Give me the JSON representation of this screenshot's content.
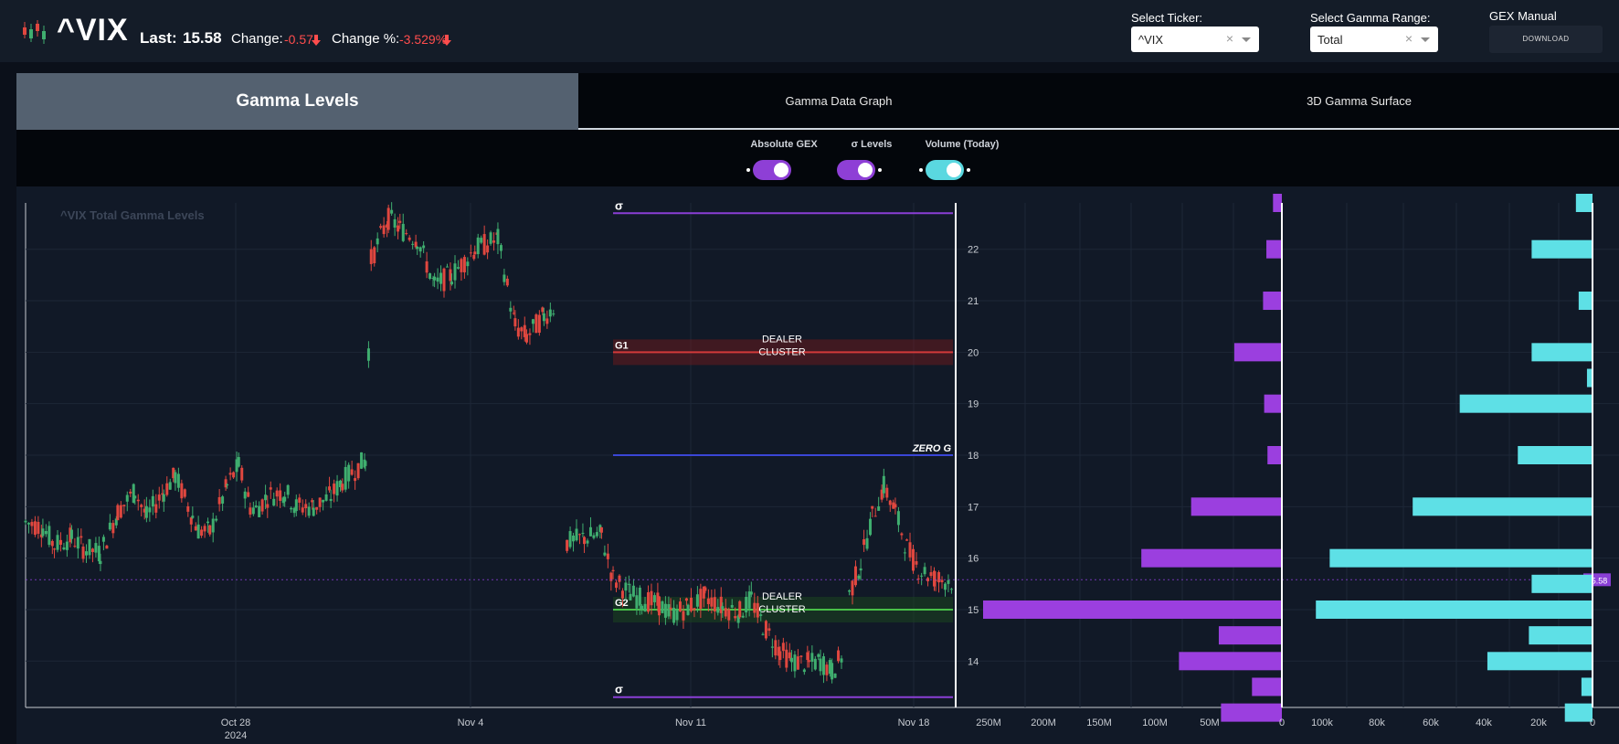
{
  "header": {
    "ticker": "^VIX",
    "last_label": "Last:",
    "last_value": "15.58",
    "change_label": "Change:",
    "change_value": "-0.57",
    "change_pct_label": "Change %:",
    "change_pct_value": "-3.529%",
    "down_color": "#ff4d4d",
    "logo_icon": "candlestick-logo-icon"
  },
  "controls": {
    "ticker_label": "Select Ticker:",
    "ticker_value": "^VIX",
    "gamma_range_label": "Select Gamma Range:",
    "gamma_range_value": "Total",
    "gex_manual_label": "GEX Manual",
    "download_label": "DOWNLOAD",
    "clear_glyph": "×"
  },
  "tabs": [
    {
      "label": "Gamma Levels",
      "active": true
    },
    {
      "label": "Gamma Data Graph",
      "active": false
    },
    {
      "label": "3D Gamma Surface",
      "active": false
    }
  ],
  "toggles": [
    {
      "label": "Absolute GEX",
      "on": true,
      "color": "#8e3fd6"
    },
    {
      "label": "σ Levels",
      "on": true,
      "color": "#8e3fd6"
    },
    {
      "label": "Volume (Today)",
      "on": true,
      "color": "#5ad8e0"
    }
  ],
  "chart_data": {
    "type": "candlestick",
    "title": "^VIX Total Gamma Levels",
    "x_ticks": [
      {
        "label": "Oct 28",
        "sublabel": "2024"
      },
      {
        "label": "Nov 4",
        "sublabel": ""
      },
      {
        "label": "Nov 11",
        "sublabel": ""
      },
      {
        "label": "Nov 18",
        "sublabel": ""
      }
    ],
    "y_ticks": [
      14,
      15,
      16,
      17,
      18,
      19,
      20,
      21,
      22
    ],
    "ylim": [
      13.1,
      22.9
    ],
    "last_price": 15.58,
    "last_price_label": "15.58",
    "price_path": [
      {
        "t": 0,
        "p": 16.7
      },
      {
        "t": 3,
        "p": 16.6
      },
      {
        "t": 5,
        "p": 16.25
      },
      {
        "t": 8,
        "p": 16.4
      },
      {
        "t": 10,
        "p": 16.2
      },
      {
        "t": 13,
        "p": 16.1
      },
      {
        "t": 16,
        "p": 16.9
      },
      {
        "t": 19,
        "p": 17.3
      },
      {
        "t": 21,
        "p": 16.8
      },
      {
        "t": 24,
        "p": 17.3
      },
      {
        "t": 26,
        "p": 17.6
      },
      {
        "t": 29,
        "p": 16.8
      },
      {
        "t": 30,
        "p": 16.55
      },
      {
        "t": 32,
        "p": 16.5
      },
      {
        "t": 35,
        "p": 17.4
      },
      {
        "t": 37,
        "p": 17.8
      },
      {
        "t": 39,
        "p": 17.0
      },
      {
        "t": 40,
        "p": 16.95
      },
      {
        "t": 42,
        "p": 17.2
      },
      {
        "t": 45,
        "p": 17.3
      },
      {
        "t": 47,
        "p": 17.0
      },
      {
        "t": 50,
        "p": 17.0
      },
      {
        "t": 53,
        "p": 17.2
      },
      {
        "t": 55,
        "p": 17.5
      },
      {
        "t": 59,
        "p": 17.9
      },
      {
        "t": 60,
        "p": 21.8
      },
      {
        "t": 63,
        "p": 22.6
      },
      {
        "t": 65,
        "p": 22.4
      },
      {
        "t": 68,
        "p": 22.2
      },
      {
        "t": 71,
        "p": 21.3
      },
      {
        "t": 74,
        "p": 21.5
      },
      {
        "t": 78,
        "p": 22.0
      },
      {
        "t": 82,
        "p": 22.2
      },
      {
        "t": 85,
        "p": 20.5
      },
      {
        "t": 87,
        "p": 20.3
      },
      {
        "t": 90,
        "p": 20.7
      },
      {
        "t": 92,
        "p": 20.9
      },
      {
        "t": 94,
        "p": 16.3
      },
      {
        "t": 97,
        "p": 16.4
      },
      {
        "t": 100,
        "p": 16.45
      },
      {
        "t": 102,
        "p": 15.6
      },
      {
        "t": 105,
        "p": 15.3
      },
      {
        "t": 107,
        "p": 15.2
      },
      {
        "t": 110,
        "p": 15.1
      },
      {
        "t": 112,
        "p": 14.9
      },
      {
        "t": 115,
        "p": 15.05
      },
      {
        "t": 118,
        "p": 15.25
      },
      {
        "t": 121,
        "p": 15.05
      },
      {
        "t": 124,
        "p": 14.95
      },
      {
        "t": 126,
        "p": 15.2
      },
      {
        "t": 128,
        "p": 14.7
      },
      {
        "t": 131,
        "p": 14.2
      },
      {
        "t": 133,
        "p": 14.0
      },
      {
        "t": 136,
        "p": 13.95
      },
      {
        "t": 138,
        "p": 14.0
      },
      {
        "t": 140,
        "p": 13.8
      },
      {
        "t": 142,
        "p": 14.15
      },
      {
        "t": 143,
        "p": 15.3
      },
      {
        "t": 145,
        "p": 15.9
      },
      {
        "t": 147,
        "p": 16.8
      },
      {
        "t": 149,
        "p": 17.4
      },
      {
        "t": 151,
        "p": 16.9
      },
      {
        "t": 153,
        "p": 16.2
      },
      {
        "t": 155,
        "p": 15.8
      },
      {
        "t": 158,
        "p": 15.6
      },
      {
        "t": 161,
        "p": 15.55
      }
    ],
    "levels": [
      {
        "label": "σ",
        "price": 22.7,
        "color": "#8a3fd6",
        "band": false
      },
      {
        "label": "G1",
        "price": 20.0,
        "color": "#d23a3a",
        "band": true,
        "band_color": "#7a1a1a",
        "band_note": "DEALER\nCLUSTER",
        "note_line1": "DEALER",
        "note_line2": "CLUSTER"
      },
      {
        "label": "ZERO G",
        "price": 18.0,
        "color": "#3a46d6",
        "band": false,
        "italic": true
      },
      {
        "label": "G2",
        "price": 15.0,
        "color": "#48c048",
        "band": true,
        "band_color": "#1c4d1c",
        "note_line1": "DEALER",
        "note_line2": "CLUSTER"
      },
      {
        "label": "σ",
        "price": 13.3,
        "color": "#8a3fd6",
        "band": false
      }
    ],
    "gex_axis": {
      "ticks": [
        "250M",
        "200M",
        "150M",
        "100M",
        "50M",
        "0"
      ],
      "max": 270
    },
    "gex_bars": [
      {
        "price": 22.9,
        "value": 8
      },
      {
        "price": 22.0,
        "value": 14
      },
      {
        "price": 21.0,
        "value": 17
      },
      {
        "price": 20.0,
        "value": 43
      },
      {
        "price": 19.0,
        "value": 16
      },
      {
        "price": 18.0,
        "value": 13
      },
      {
        "price": 17.0,
        "value": 82
      },
      {
        "price": 16.0,
        "value": 127
      },
      {
        "price": 15.0,
        "value": 270
      },
      {
        "price": 14.5,
        "value": 57
      },
      {
        "price": 14.0,
        "value": 93
      },
      {
        "price": 13.5,
        "value": 27
      },
      {
        "price": 13.0,
        "value": 55
      }
    ],
    "vol_axis": {
      "ticks": [
        "100k",
        "80k",
        "60k",
        "40k",
        "20k",
        "0"
      ],
      "max": 108
    },
    "vol_bars": [
      {
        "price": 22.9,
        "value": 6
      },
      {
        "price": 22.0,
        "value": 22
      },
      {
        "price": 21.0,
        "value": 5
      },
      {
        "price": 20.0,
        "value": 22
      },
      {
        "price": 19.5,
        "value": 2
      },
      {
        "price": 19.0,
        "value": 48
      },
      {
        "price": 18.0,
        "value": 27
      },
      {
        "price": 17.0,
        "value": 65
      },
      {
        "price": 16.0,
        "value": 95
      },
      {
        "price": 15.5,
        "value": 22
      },
      {
        "price": 15.0,
        "value": 100
      },
      {
        "price": 14.5,
        "value": 23
      },
      {
        "price": 14.0,
        "value": 38
      },
      {
        "price": 13.5,
        "value": 4
      },
      {
        "price": 13.0,
        "value": 10
      }
    ],
    "candle_up_color": "#3fae6f",
    "candle_down_color": "#e0473f",
    "gex_color": "#9b3fdf",
    "vol_color": "#5ee0e6",
    "last_price_color": "#8a3fd6"
  }
}
